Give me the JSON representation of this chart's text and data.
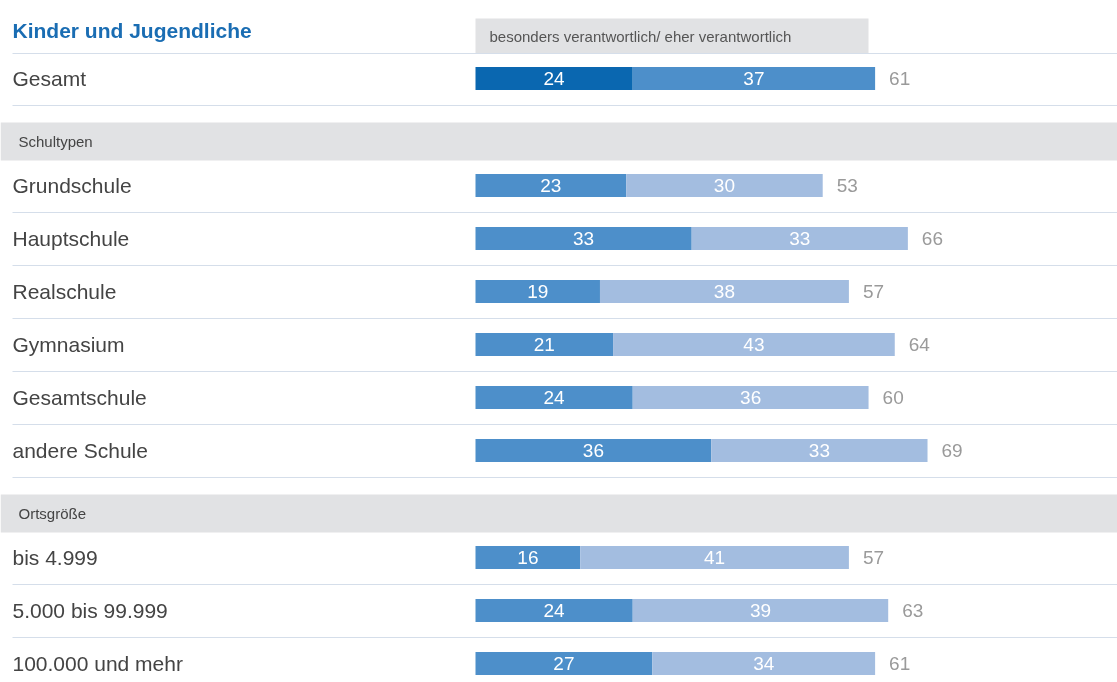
{
  "chart_data": {
    "type": "bar",
    "orientation": "horizontal",
    "stacked": true,
    "title": "Kinder und Jugendliche",
    "subtitle": "besonders verantwortlich/ eher verantwortlich",
    "categories": [
      "Gesamt",
      "Schultypen",
      "Grundschule",
      "Hauptschule",
      "Realschule",
      "Gymnasium",
      "Gesamtschule",
      "andere Schule",
      "Ortsgröße",
      "bis 4.999",
      "5.000 bis 99.999",
      "100.000 und mehr"
    ],
    "series": [
      {
        "values": [
          24,
          null,
          23,
          33,
          19,
          21,
          24,
          36,
          null,
          16,
          24,
          27
        ],
        "colors": [
          "#0a67b0",
          null,
          "#4d8fca",
          "#4d8fca",
          "#4d8fca",
          "#4d8fca",
          "#4d8fca",
          "#4d8fca",
          null,
          "#4d8fca",
          "#4d8fca",
          "#4d8fca"
        ]
      },
      {
        "values": [
          37,
          null,
          30,
          33,
          38,
          43,
          36,
          33,
          null,
          41,
          39,
          34
        ],
        "colors": [
          "#4d8fca",
          null,
          "#a3bde0",
          "#a3bde0",
          "#a3bde0",
          "#a3bde0",
          "#a3bde0",
          "#a3bde0",
          null,
          "#a3bde0",
          "#a3bde0",
          "#a3bde0"
        ]
      }
    ],
    "totals": [
      "61",
      null,
      "53",
      "66",
      "57",
      "64",
      "60",
      "69",
      null,
      "57",
      "63",
      "61"
    ],
    "bands": [
      {
        "axis": "y",
        "from": "Schultypen",
        "to": "Schultypen",
        "color": "#e1e2e4"
      },
      {
        "axis": "y",
        "from": "Ortsgröße",
        "to": "Ortsgröße",
        "color": "#e1e2e4"
      }
    ],
    "data_labels": true,
    "xlim": [
      0,
      98
    ],
    "tick_labels": false,
    "grid": false
  }
}
